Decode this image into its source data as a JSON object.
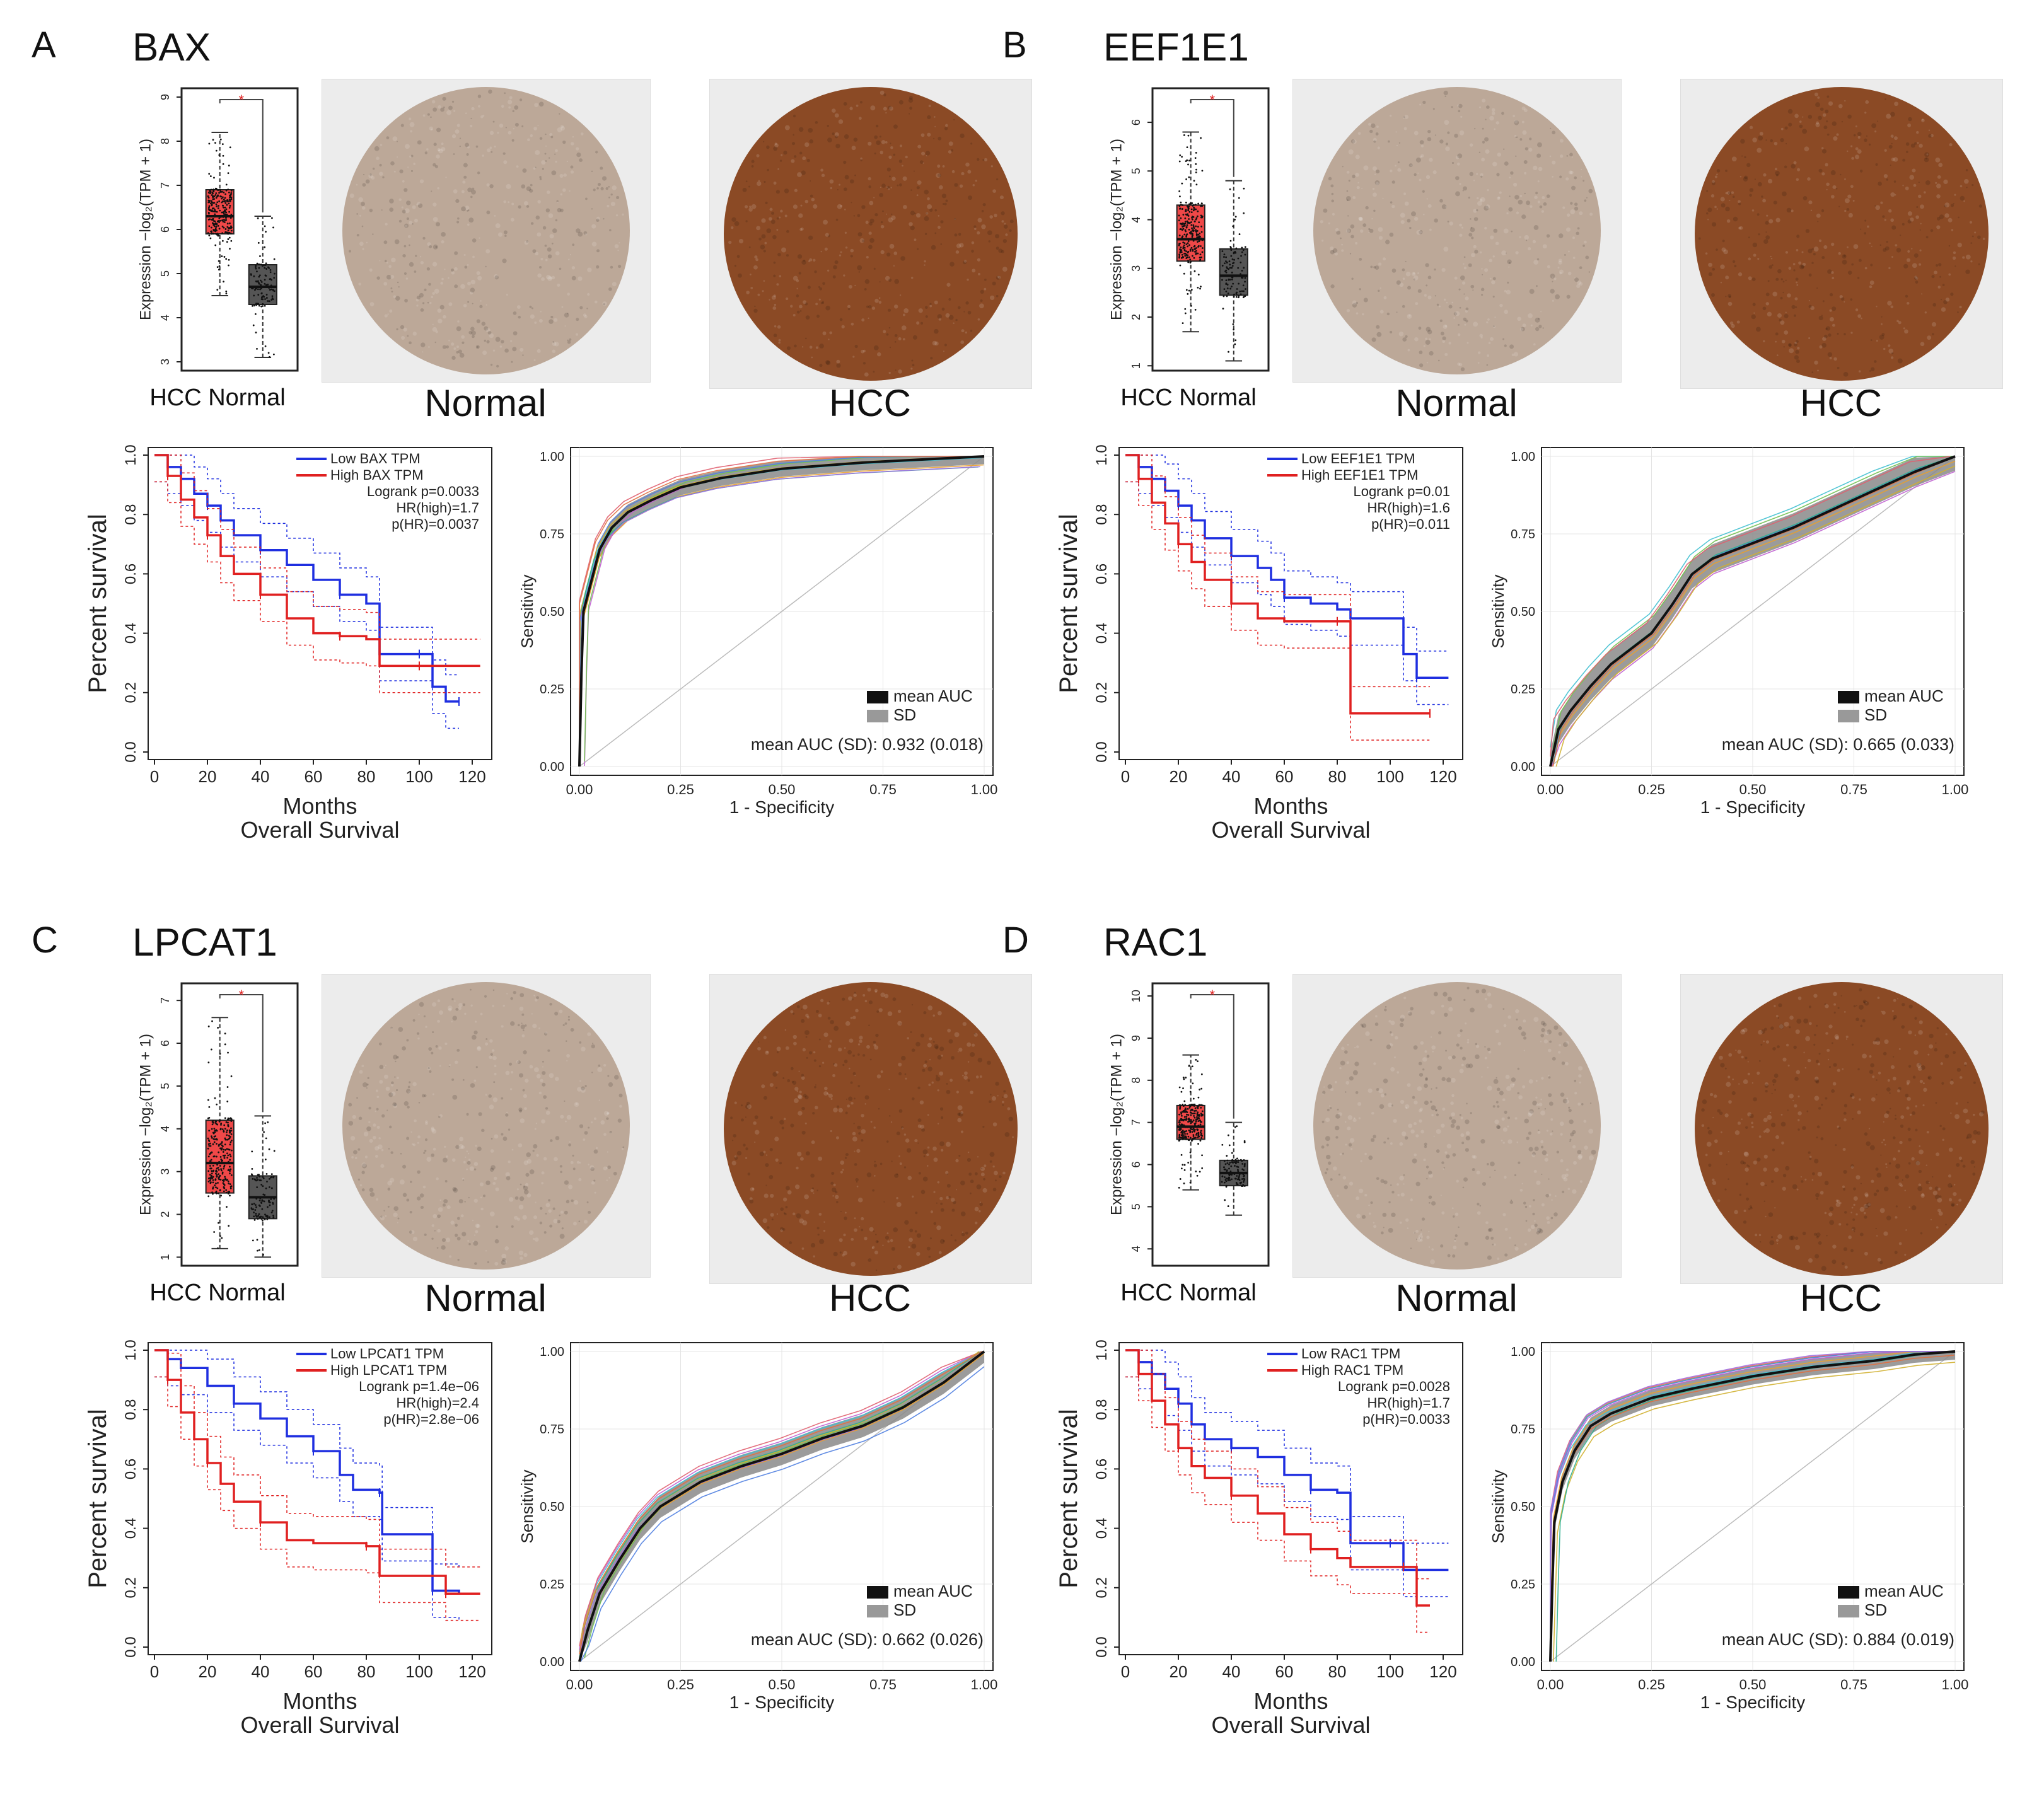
{
  "figure": {
    "legend_low_prefix": "Low",
    "legend_high_prefix": "High",
    "legend_tpm_suffix": "TPM",
    "box_xlabels": [
      "HCC",
      "Normal"
    ],
    "box_ylabel": "Expression −log₂(TPM + 1)",
    "km_ylabel": "Percent survival",
    "km_xlabel": "Months",
    "km_xlabel2": "Overall Survival",
    "roc_ylabel": "Sensitivity",
    "roc_xlabel": "1 - Specificity",
    "roc_legend": [
      "mean AUC",
      "SD"
    ],
    "tissue_normal": "Normal",
    "tissue_hcc": "HCC",
    "colors": {
      "low": "#1f2fe0",
      "high": "#e02020",
      "tumor_box": "#f04848",
      "normal_box": "#555555",
      "tissue_stain_normal": "#bca898",
      "tissue_stain_hcc": "#8b4a25"
    },
    "icons": [
      "significance-star-icon"
    ]
  },
  "chart_data": [
    {
      "panel": "A",
      "gene": "BAX",
      "type": "composite",
      "boxplot": {
        "y_ticks": [
          "3",
          "4",
          "5",
          "6",
          "7",
          "8",
          "9"
        ],
        "ylim": [
          2.8,
          9.2
        ],
        "significance": "*",
        "hcc": {
          "q1": 5.9,
          "median": 6.3,
          "q3": 6.9,
          "whisker_low": 4.5,
          "whisker_high": 8.2
        },
        "normal": {
          "q1": 4.3,
          "median": 4.7,
          "q3": 5.2,
          "whisker_low": 3.1,
          "whisker_high": 6.3
        }
      },
      "km": {
        "logrank": "Logrank p=0.0033",
        "hr": "HR(high)=1.7",
        "phr": "p(HR)=0.0037",
        "x_ticks": [
          "0",
          "20",
          "40",
          "60",
          "80",
          "100",
          "120"
        ],
        "y_ticks": [
          "0.0",
          "0.2",
          "0.4",
          "0.6",
          "0.8",
          "1.0"
        ],
        "xlim": [
          0,
          125
        ],
        "low": [
          [
            0,
            1.0
          ],
          [
            5,
            0.96
          ],
          [
            10,
            0.92
          ],
          [
            15,
            0.87
          ],
          [
            20,
            0.83
          ],
          [
            25,
            0.78
          ],
          [
            30,
            0.73
          ],
          [
            40,
            0.68
          ],
          [
            50,
            0.63
          ],
          [
            60,
            0.58
          ],
          [
            70,
            0.53
          ],
          [
            80,
            0.5
          ],
          [
            85,
            0.33
          ],
          [
            100,
            0.33
          ],
          [
            105,
            0.22
          ],
          [
            110,
            0.17
          ],
          [
            115,
            0.17
          ]
        ],
        "high": [
          [
            0,
            1.0
          ],
          [
            5,
            0.93
          ],
          [
            10,
            0.85
          ],
          [
            15,
            0.79
          ],
          [
            20,
            0.73
          ],
          [
            25,
            0.66
          ],
          [
            30,
            0.6
          ],
          [
            40,
            0.53
          ],
          [
            50,
            0.45
          ],
          [
            60,
            0.4
          ],
          [
            70,
            0.39
          ],
          [
            80,
            0.38
          ],
          [
            85,
            0.29
          ],
          [
            100,
            0.29
          ],
          [
            110,
            0.29
          ],
          [
            123,
            0.29
          ]
        ]
      },
      "roc": {
        "mean_auc_text": "mean AUC (SD): 0.932 (0.018)",
        "mean_auc": 0.932,
        "sd": 0.018,
        "x_ticks": [
          "0.00",
          "0.25",
          "0.50",
          "0.75",
          "1.00"
        ],
        "y_ticks": [
          "0.00",
          "0.25",
          "0.50",
          "0.75",
          "1.00"
        ],
        "curve": [
          [
            0,
            0
          ],
          [
            0.005,
            0.3
          ],
          [
            0.01,
            0.5
          ],
          [
            0.03,
            0.6
          ],
          [
            0.05,
            0.7
          ],
          [
            0.08,
            0.77
          ],
          [
            0.12,
            0.82
          ],
          [
            0.18,
            0.86
          ],
          [
            0.25,
            0.9
          ],
          [
            0.35,
            0.93
          ],
          [
            0.5,
            0.96
          ],
          [
            0.7,
            0.98
          ],
          [
            0.85,
            0.99
          ],
          [
            1,
            1
          ]
        ]
      }
    },
    {
      "panel": "B",
      "gene": "EEF1E1",
      "type": "composite",
      "boxplot": {
        "y_ticks": [
          "1",
          "2",
          "3",
          "4",
          "5",
          "6"
        ],
        "ylim": [
          0.9,
          6.7
        ],
        "significance": "*",
        "hcc": {
          "q1": 3.15,
          "median": 3.6,
          "q3": 4.3,
          "whisker_low": 1.7,
          "whisker_high": 5.8
        },
        "normal": {
          "q1": 2.45,
          "median": 2.85,
          "q3": 3.4,
          "whisker_low": 1.1,
          "whisker_high": 4.8
        }
      },
      "km": {
        "logrank": "Logrank p=0.01",
        "hr": "HR(high)=1.6",
        "phr": "p(HR)=0.011",
        "x_ticks": [
          "0",
          "20",
          "40",
          "60",
          "80",
          "100",
          "120"
        ],
        "y_ticks": [
          "0.0",
          "0.2",
          "0.4",
          "0.6",
          "0.8",
          "1.0"
        ],
        "xlim": [
          0,
          125
        ],
        "low": [
          [
            0,
            1.0
          ],
          [
            5,
            0.96
          ],
          [
            10,
            0.92
          ],
          [
            15,
            0.88
          ],
          [
            20,
            0.83
          ],
          [
            25,
            0.78
          ],
          [
            30,
            0.72
          ],
          [
            40,
            0.66
          ],
          [
            50,
            0.62
          ],
          [
            55,
            0.58
          ],
          [
            60,
            0.52
          ],
          [
            70,
            0.5
          ],
          [
            80,
            0.48
          ],
          [
            85,
            0.45
          ],
          [
            100,
            0.45
          ],
          [
            105,
            0.33
          ],
          [
            110,
            0.25
          ],
          [
            122,
            0.25
          ]
        ],
        "high": [
          [
            0,
            1.0
          ],
          [
            5,
            0.92
          ],
          [
            10,
            0.84
          ],
          [
            15,
            0.77
          ],
          [
            20,
            0.7
          ],
          [
            25,
            0.64
          ],
          [
            30,
            0.58
          ],
          [
            40,
            0.5
          ],
          [
            50,
            0.45
          ],
          [
            60,
            0.44
          ],
          [
            80,
            0.44
          ],
          [
            85,
            0.13
          ],
          [
            100,
            0.13
          ],
          [
            115,
            0.13
          ]
        ]
      },
      "roc": {
        "mean_auc_text": "mean AUC (SD): 0.665 (0.033)",
        "mean_auc": 0.665,
        "sd": 0.033,
        "x_ticks": [
          "0.00",
          "0.25",
          "0.50",
          "0.75",
          "1.00"
        ],
        "y_ticks": [
          "0.00",
          "0.25",
          "0.50",
          "0.75",
          "1.00"
        ],
        "curve": [
          [
            0,
            0
          ],
          [
            0.02,
            0.12
          ],
          [
            0.05,
            0.18
          ],
          [
            0.1,
            0.26
          ],
          [
            0.15,
            0.33
          ],
          [
            0.2,
            0.38
          ],
          [
            0.25,
            0.43
          ],
          [
            0.3,
            0.52
          ],
          [
            0.35,
            0.62
          ],
          [
            0.4,
            0.67
          ],
          [
            0.5,
            0.72
          ],
          [
            0.6,
            0.77
          ],
          [
            0.7,
            0.83
          ],
          [
            0.8,
            0.89
          ],
          [
            0.9,
            0.95
          ],
          [
            1,
            1
          ]
        ]
      }
    },
    {
      "panel": "C",
      "gene": "LPCAT1",
      "type": "composite",
      "boxplot": {
        "y_ticks": [
          "1",
          "2",
          "3",
          "4",
          "5",
          "6",
          "7"
        ],
        "ylim": [
          0.8,
          7.4
        ],
        "significance": "*",
        "hcc": {
          "q1": 2.5,
          "median": 3.2,
          "q3": 4.2,
          "whisker_low": 1.2,
          "whisker_high": 6.6
        },
        "normal": {
          "q1": 1.9,
          "median": 2.4,
          "q3": 2.9,
          "whisker_low": 1.0,
          "whisker_high": 4.3
        }
      },
      "km": {
        "logrank": "Logrank p=1.4e−06",
        "hr": "HR(high)=2.4",
        "phr": "p(HR)=2.8e−06",
        "x_ticks": [
          "0",
          "20",
          "40",
          "60",
          "80",
          "100",
          "120"
        ],
        "y_ticks": [
          "0.0",
          "0.2",
          "0.4",
          "0.6",
          "0.8",
          "1.0"
        ],
        "xlim": [
          0,
          125
        ],
        "low": [
          [
            0,
            1.0
          ],
          [
            5,
            0.97
          ],
          [
            10,
            0.94
          ],
          [
            20,
            0.88
          ],
          [
            30,
            0.82
          ],
          [
            40,
            0.77
          ],
          [
            50,
            0.71
          ],
          [
            60,
            0.66
          ],
          [
            70,
            0.58
          ],
          [
            75,
            0.53
          ],
          [
            85,
            0.52
          ],
          [
            86,
            0.38
          ],
          [
            100,
            0.38
          ],
          [
            105,
            0.19
          ],
          [
            115,
            0.18
          ]
        ],
        "high": [
          [
            0,
            1.0
          ],
          [
            5,
            0.9
          ],
          [
            10,
            0.79
          ],
          [
            15,
            0.7
          ],
          [
            20,
            0.62
          ],
          [
            25,
            0.55
          ],
          [
            30,
            0.49
          ],
          [
            40,
            0.42
          ],
          [
            50,
            0.36
          ],
          [
            60,
            0.35
          ],
          [
            80,
            0.34
          ],
          [
            85,
            0.24
          ],
          [
            100,
            0.24
          ],
          [
            110,
            0.18
          ],
          [
            123,
            0.18
          ]
        ]
      },
      "roc": {
        "mean_auc_text": "mean AUC (SD): 0.662 (0.026)",
        "mean_auc": 0.662,
        "sd": 0.026,
        "x_ticks": [
          "0.00",
          "0.25",
          "0.50",
          "0.75",
          "1.00"
        ],
        "y_ticks": [
          "0.00",
          "0.25",
          "0.50",
          "0.75",
          "1.00"
        ],
        "curve": [
          [
            0,
            0
          ],
          [
            0.02,
            0.1
          ],
          [
            0.05,
            0.22
          ],
          [
            0.1,
            0.33
          ],
          [
            0.15,
            0.43
          ],
          [
            0.2,
            0.5
          ],
          [
            0.25,
            0.54
          ],
          [
            0.3,
            0.58
          ],
          [
            0.4,
            0.63
          ],
          [
            0.5,
            0.67
          ],
          [
            0.6,
            0.72
          ],
          [
            0.7,
            0.76
          ],
          [
            0.8,
            0.82
          ],
          [
            0.9,
            0.9
          ],
          [
            1,
            1
          ]
        ]
      }
    },
    {
      "panel": "D",
      "gene": "RAC1",
      "type": "composite",
      "boxplot": {
        "y_ticks": [
          "4",
          "5",
          "6",
          "7",
          "8",
          "9",
          "10"
        ],
        "ylim": [
          3.6,
          10.3
        ],
        "significance": "*",
        "hcc": {
          "q1": 6.6,
          "median": 6.9,
          "q3": 7.4,
          "whisker_low": 5.4,
          "whisker_high": 8.6
        },
        "normal": {
          "q1": 5.5,
          "median": 5.8,
          "q3": 6.1,
          "whisker_low": 4.8,
          "whisker_high": 7.0
        }
      },
      "km": {
        "logrank": "Logrank p=0.0028",
        "hr": "HR(high)=1.7",
        "phr": "p(HR)=0.0033",
        "x_ticks": [
          "0",
          "20",
          "40",
          "60",
          "80",
          "100",
          "120"
        ],
        "y_ticks": [
          "0.0",
          "0.2",
          "0.4",
          "0.6",
          "0.8",
          "1.0"
        ],
        "xlim": [
          0,
          125
        ],
        "low": [
          [
            0,
            1.0
          ],
          [
            5,
            0.96
          ],
          [
            10,
            0.92
          ],
          [
            15,
            0.87
          ],
          [
            20,
            0.82
          ],
          [
            25,
            0.75
          ],
          [
            30,
            0.7
          ],
          [
            40,
            0.67
          ],
          [
            50,
            0.64
          ],
          [
            60,
            0.58
          ],
          [
            70,
            0.53
          ],
          [
            80,
            0.52
          ],
          [
            85,
            0.35
          ],
          [
            100,
            0.35
          ],
          [
            105,
            0.26
          ],
          [
            122,
            0.26
          ]
        ],
        "high": [
          [
            0,
            1.0
          ],
          [
            5,
            0.92
          ],
          [
            10,
            0.83
          ],
          [
            15,
            0.75
          ],
          [
            20,
            0.67
          ],
          [
            25,
            0.61
          ],
          [
            30,
            0.57
          ],
          [
            40,
            0.51
          ],
          [
            50,
            0.45
          ],
          [
            60,
            0.38
          ],
          [
            70,
            0.33
          ],
          [
            80,
            0.3
          ],
          [
            85,
            0.27
          ],
          [
            105,
            0.27
          ],
          [
            110,
            0.14
          ],
          [
            115,
            0.14
          ]
        ]
      },
      "roc": {
        "mean_auc_text": "mean AUC (SD): 0.884 (0.019)",
        "mean_auc": 0.884,
        "sd": 0.019,
        "x_ticks": [
          "0.00",
          "0.25",
          "0.50",
          "0.75",
          "1.00"
        ],
        "y_ticks": [
          "0.00",
          "0.25",
          "0.50",
          "0.75",
          "1.00"
        ],
        "curve": [
          [
            0,
            0
          ],
          [
            0.005,
            0.25
          ],
          [
            0.01,
            0.45
          ],
          [
            0.03,
            0.58
          ],
          [
            0.06,
            0.68
          ],
          [
            0.1,
            0.76
          ],
          [
            0.15,
            0.8
          ],
          [
            0.25,
            0.85
          ],
          [
            0.35,
            0.88
          ],
          [
            0.5,
            0.92
          ],
          [
            0.65,
            0.95
          ],
          [
            0.8,
            0.97
          ],
          [
            0.9,
            0.99
          ],
          [
            1,
            1
          ]
        ]
      }
    }
  ]
}
